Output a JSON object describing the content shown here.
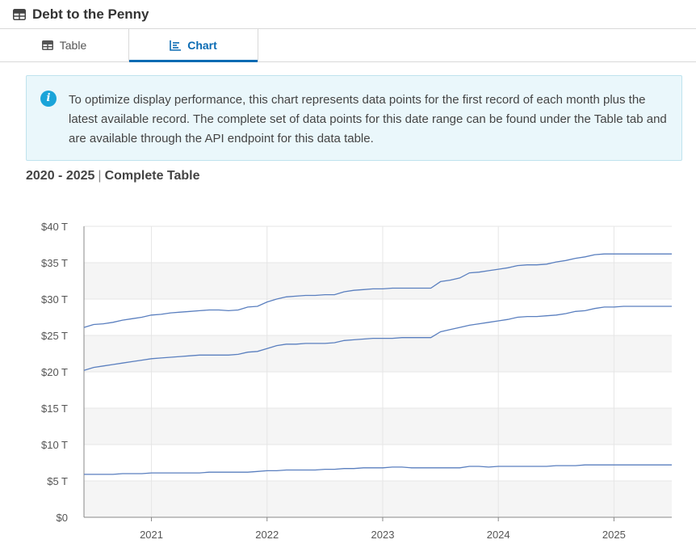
{
  "header": {
    "title": "Debt to the Penny",
    "icon": "table-icon"
  },
  "tabs": [
    {
      "label": "Table",
      "icon": "table-icon",
      "active": false
    },
    {
      "label": "Chart",
      "icon": "chart-icon",
      "active": true
    }
  ],
  "info": {
    "icon": "info-icon",
    "text": "To optimize display performance, this chart represents data points for the first record of each month plus the latest available record. The complete set of data points for this date range can be found under the Table tab and are available through the API endpoint for this data table."
  },
  "subtitle": {
    "range": "2020 - 2025",
    "separator": "|",
    "label": "Complete Table"
  },
  "colors": {
    "accent": "#0a6bb3",
    "line": "#5a7fbf",
    "info_bg": "#eaf7fb"
  },
  "chart_data": {
    "type": "line",
    "xlabel": "",
    "ylabel": "",
    "ylim": [
      0,
      40
    ],
    "y_ticks": [
      "$0",
      "$5 T",
      "$10 T",
      "$15 T",
      "$20 T",
      "$25 T",
      "$30 T",
      "$35 T",
      "$40 T"
    ],
    "x_ticks": [
      "2021",
      "2022",
      "2023",
      "2024",
      "2025"
    ],
    "x_range": [
      "2020-06",
      "2025-07"
    ],
    "grid": true,
    "series": [
      {
        "x": [
          "2020-06",
          "2020-07",
          "2020-08",
          "2020-09",
          "2020-10",
          "2020-11",
          "2020-12",
          "2021-01",
          "2021-02",
          "2021-03",
          "2021-04",
          "2021-05",
          "2021-06",
          "2021-07",
          "2021-08",
          "2021-09",
          "2021-10",
          "2021-11",
          "2021-12",
          "2022-01",
          "2022-02",
          "2022-03",
          "2022-04",
          "2022-05",
          "2022-06",
          "2022-07",
          "2022-08",
          "2022-09",
          "2022-10",
          "2022-11",
          "2022-12",
          "2023-01",
          "2023-02",
          "2023-03",
          "2023-04",
          "2023-05",
          "2023-06",
          "2023-07",
          "2023-08",
          "2023-09",
          "2023-10",
          "2023-11",
          "2023-12",
          "2024-01",
          "2024-02",
          "2024-03",
          "2024-04",
          "2024-05",
          "2024-06",
          "2024-07",
          "2024-08",
          "2024-09",
          "2024-10",
          "2024-11",
          "2024-12",
          "2025-01",
          "2025-02",
          "2025-03",
          "2025-04",
          "2025-05",
          "2025-06",
          "2025-07"
        ],
        "values": [
          26.1,
          26.5,
          26.6,
          26.8,
          27.1,
          27.3,
          27.5,
          27.8,
          27.9,
          28.1,
          28.2,
          28.3,
          28.4,
          28.5,
          28.5,
          28.4,
          28.5,
          28.9,
          29.0,
          29.6,
          30.0,
          30.3,
          30.4,
          30.5,
          30.5,
          30.6,
          30.6,
          31.0,
          31.2,
          31.3,
          31.4,
          31.4,
          31.5,
          31.5,
          31.5,
          31.5,
          31.5,
          32.4,
          32.6,
          32.9,
          33.6,
          33.7,
          33.9,
          34.1,
          34.3,
          34.6,
          34.7,
          34.7,
          34.8,
          35.1,
          35.3,
          35.6,
          35.8,
          36.1,
          36.2,
          36.2,
          36.2,
          36.2,
          36.2,
          36.2,
          36.2,
          36.2
        ]
      },
      {
        "x": [
          "2020-06",
          "2020-07",
          "2020-08",
          "2020-09",
          "2020-10",
          "2020-11",
          "2020-12",
          "2021-01",
          "2021-02",
          "2021-03",
          "2021-04",
          "2021-05",
          "2021-06",
          "2021-07",
          "2021-08",
          "2021-09",
          "2021-10",
          "2021-11",
          "2021-12",
          "2022-01",
          "2022-02",
          "2022-03",
          "2022-04",
          "2022-05",
          "2022-06",
          "2022-07",
          "2022-08",
          "2022-09",
          "2022-10",
          "2022-11",
          "2022-12",
          "2023-01",
          "2023-02",
          "2023-03",
          "2023-04",
          "2023-05",
          "2023-06",
          "2023-07",
          "2023-08",
          "2023-09",
          "2023-10",
          "2023-11",
          "2023-12",
          "2024-01",
          "2024-02",
          "2024-03",
          "2024-04",
          "2024-05",
          "2024-06",
          "2024-07",
          "2024-08",
          "2024-09",
          "2024-10",
          "2024-11",
          "2024-12",
          "2025-01",
          "2025-02",
          "2025-03",
          "2025-04",
          "2025-05",
          "2025-06",
          "2025-07"
        ],
        "values": [
          20.2,
          20.6,
          20.8,
          21.0,
          21.2,
          21.4,
          21.6,
          21.8,
          21.9,
          22.0,
          22.1,
          22.2,
          22.3,
          22.3,
          22.3,
          22.3,
          22.4,
          22.7,
          22.8,
          23.2,
          23.6,
          23.8,
          23.8,
          23.9,
          23.9,
          23.9,
          24.0,
          24.3,
          24.4,
          24.5,
          24.6,
          24.6,
          24.6,
          24.7,
          24.7,
          24.7,
          24.7,
          25.5,
          25.8,
          26.1,
          26.4,
          26.6,
          26.8,
          27.0,
          27.2,
          27.5,
          27.6,
          27.6,
          27.7,
          27.8,
          28.0,
          28.3,
          28.4,
          28.7,
          28.9,
          28.9,
          29.0,
          29.0,
          29.0,
          29.0,
          29.0,
          29.0
        ]
      },
      {
        "x": [
          "2020-06",
          "2020-07",
          "2020-08",
          "2020-09",
          "2020-10",
          "2020-11",
          "2020-12",
          "2021-01",
          "2021-02",
          "2021-03",
          "2021-04",
          "2021-05",
          "2021-06",
          "2021-07",
          "2021-08",
          "2021-09",
          "2021-10",
          "2021-11",
          "2021-12",
          "2022-01",
          "2022-02",
          "2022-03",
          "2022-04",
          "2022-05",
          "2022-06",
          "2022-07",
          "2022-08",
          "2022-09",
          "2022-10",
          "2022-11",
          "2022-12",
          "2023-01",
          "2023-02",
          "2023-03",
          "2023-04",
          "2023-05",
          "2023-06",
          "2023-07",
          "2023-08",
          "2023-09",
          "2023-10",
          "2023-11",
          "2023-12",
          "2024-01",
          "2024-02",
          "2024-03",
          "2024-04",
          "2024-05",
          "2024-06",
          "2024-07",
          "2024-08",
          "2024-09",
          "2024-10",
          "2024-11",
          "2024-12",
          "2025-01",
          "2025-02",
          "2025-03",
          "2025-04",
          "2025-05",
          "2025-06",
          "2025-07"
        ],
        "values": [
          5.9,
          5.9,
          5.9,
          5.9,
          6.0,
          6.0,
          6.0,
          6.1,
          6.1,
          6.1,
          6.1,
          6.1,
          6.1,
          6.2,
          6.2,
          6.2,
          6.2,
          6.2,
          6.3,
          6.4,
          6.4,
          6.5,
          6.5,
          6.5,
          6.5,
          6.6,
          6.6,
          6.7,
          6.7,
          6.8,
          6.8,
          6.8,
          6.9,
          6.9,
          6.8,
          6.8,
          6.8,
          6.8,
          6.8,
          6.8,
          7.0,
          7.0,
          6.9,
          7.0,
          7.0,
          7.0,
          7.0,
          7.0,
          7.0,
          7.1,
          7.1,
          7.1,
          7.2,
          7.2,
          7.2,
          7.2,
          7.2,
          7.2,
          7.2,
          7.2,
          7.2,
          7.2
        ]
      }
    ]
  }
}
